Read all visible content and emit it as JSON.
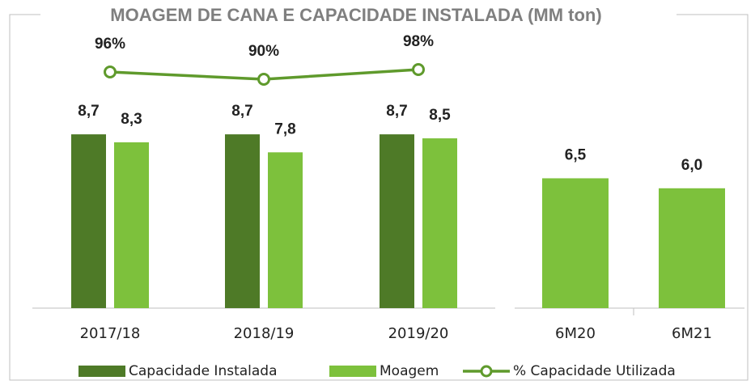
{
  "chart_data": [
    {
      "type": "bar",
      "title": "MOAGEM DE CANA E CAPACIDADE INSTALADA (MM ton)",
      "categories": [
        "2017/18",
        "2018/19",
        "2019/20"
      ],
      "ylim": [
        0,
        10
      ],
      "y2lim": [
        0,
        100
      ],
      "series": [
        {
          "name": "Capacidade Instalada",
          "color": "#4e7a27",
          "values": [
            8.7,
            8.7,
            8.7
          ],
          "value_labels": [
            "8,7",
            "8,7",
            "8,7"
          ]
        },
        {
          "name": "Moagem",
          "color": "#7dc13c",
          "values": [
            8.3,
            7.8,
            8.5
          ],
          "value_labels": [
            "8,3",
            "7,8",
            "8,5"
          ]
        },
        {
          "name": "% Capacidade Utilizada",
          "color": "#5f9a2c",
          "axis": "y2",
          "type": "line",
          "values": [
            96,
            90,
            98
          ],
          "value_labels": [
            "96%",
            "90%",
            "98%"
          ]
        }
      ]
    },
    {
      "type": "bar",
      "categories": [
        "6M20",
        "6M21"
      ],
      "ylim": [
        0,
        10
      ],
      "color": "#7dc13c",
      "values": [
        6.5,
        6.0
      ],
      "value_labels": [
        "6,5",
        "6,0"
      ]
    }
  ]
}
